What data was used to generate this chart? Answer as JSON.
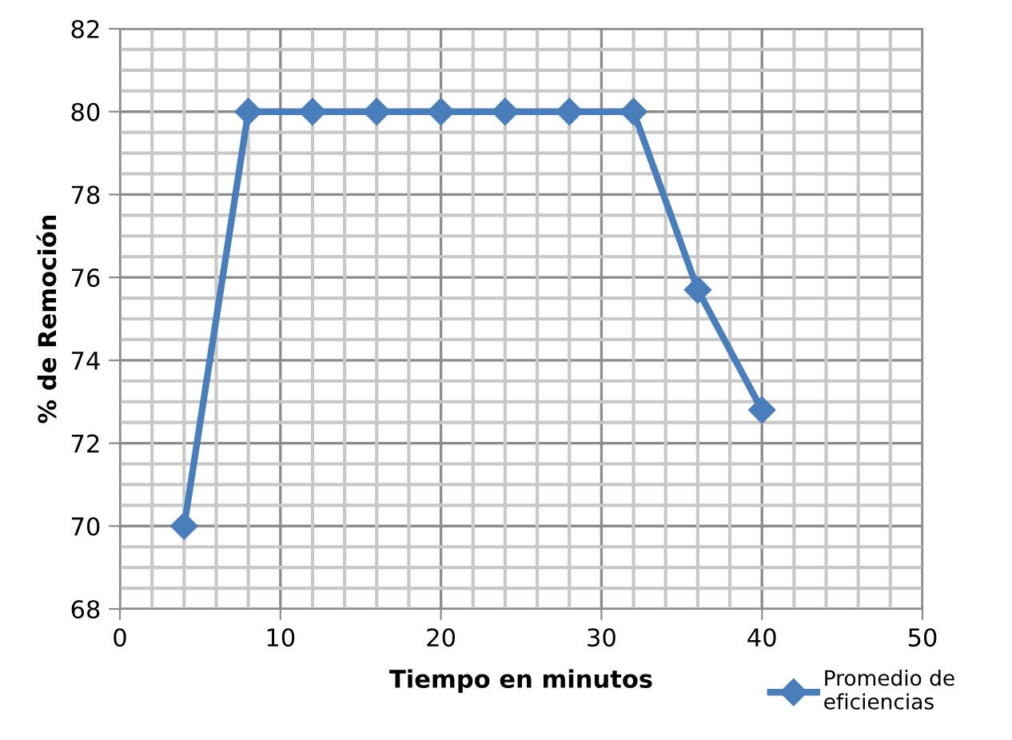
{
  "chart_data": {
    "type": "line",
    "xlabel": "Tiempo en minutos",
    "ylabel": "% de Remoción",
    "x": [
      4,
      8,
      12,
      16,
      20,
      24,
      28,
      32,
      36,
      40
    ],
    "series": [
      {
        "name": "Promedio de\neficiencias",
        "color": "#4a7ebb",
        "values": [
          70,
          80,
          80,
          80,
          80,
          80,
          80,
          80,
          75.7,
          72.8
        ]
      }
    ],
    "xlim": [
      0,
      50
    ],
    "ylim": [
      68,
      82
    ],
    "xticks": [
      0,
      10,
      20,
      30,
      40,
      50
    ],
    "yticks": [
      68,
      70,
      72,
      74,
      76,
      78,
      80,
      82
    ],
    "grid": true,
    "legend": "bottom right",
    "marker": "diamond",
    "line_style": "solid"
  }
}
